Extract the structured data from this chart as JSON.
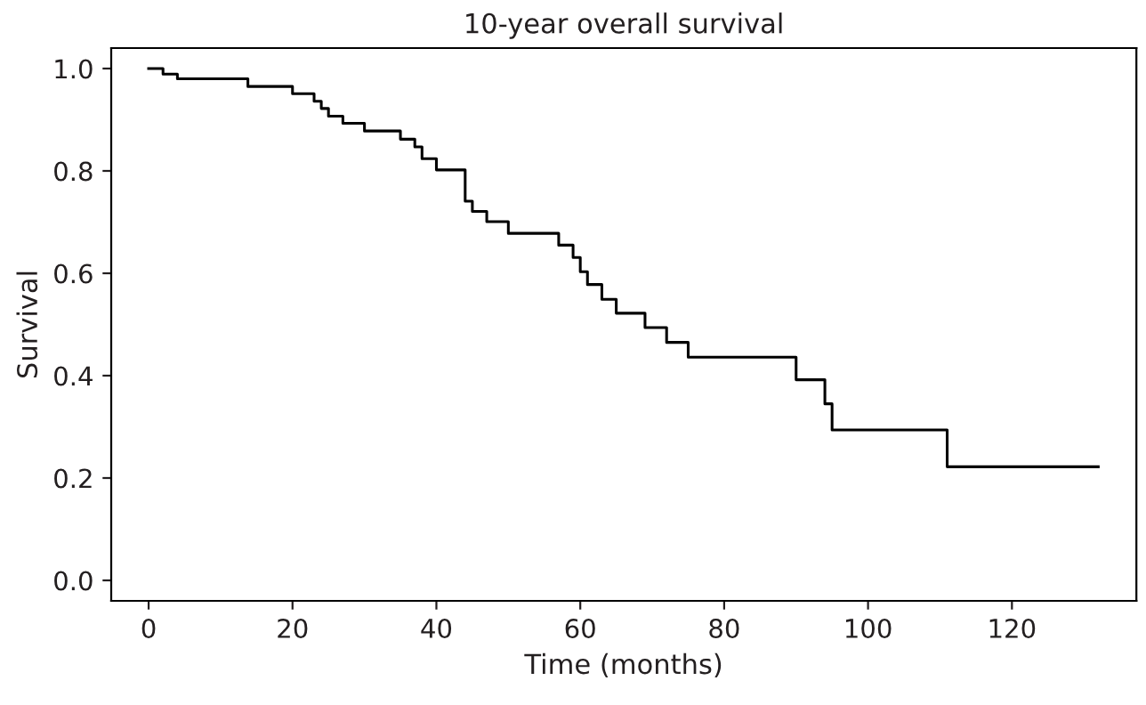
{
  "chart_data": {
    "type": "step",
    "title": "10-year overall survival",
    "xlabel": "Time (months)",
    "ylabel": "Survival",
    "x": [
      0,
      2,
      4,
      13.8,
      20,
      23,
      24,
      25,
      27,
      30,
      35,
      37,
      38,
      40,
      44,
      45,
      47,
      50,
      57,
      59,
      60,
      61,
      63,
      65,
      69,
      72,
      75,
      90,
      94,
      95,
      111,
      132
    ],
    "series": [
      {
        "color": "#000000",
        "values": [
          1.0,
          0.989,
          0.98,
          0.965,
          0.951,
          0.936,
          0.922,
          0.907,
          0.893,
          0.878,
          0.862,
          0.847,
          0.824,
          0.802,
          0.741,
          0.721,
          0.701,
          0.678,
          0.655,
          0.631,
          0.603,
          0.578,
          0.549,
          0.522,
          0.494,
          0.465,
          0.436,
          0.392,
          0.345,
          0.294,
          0.222,
          0.222
        ]
      }
    ],
    "xlim": [
      -5.2,
      137.3
    ],
    "ylim": [
      -0.04,
      1.04
    ],
    "xticks": [
      0,
      20,
      40,
      60,
      80,
      100,
      120
    ],
    "yticks": [
      {
        "value": 0,
        "label": "0.0"
      },
      {
        "value": 0.2,
        "label": "0.2"
      },
      {
        "value": 0.4,
        "label": "0.4"
      },
      {
        "value": 0.6,
        "label": "0.6"
      },
      {
        "value": 0.8,
        "label": "0.8"
      },
      {
        "value": 1.0,
        "label": "1.0"
      }
    ],
    "grid": false,
    "marker": "none",
    "line_style": "solid"
  }
}
